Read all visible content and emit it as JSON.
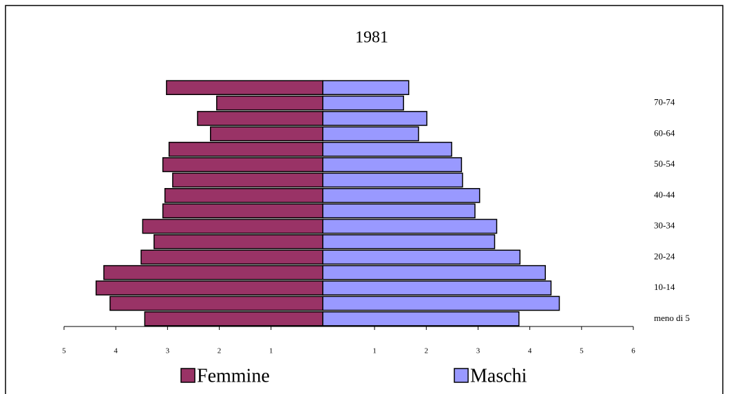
{
  "chart_data": {
    "type": "pyramid",
    "title": "1981",
    "categories": [
      "meno di 5",
      null,
      "10-14",
      null,
      "20-24",
      null,
      "30-34",
      null,
      "40-44",
      null,
      "50-54",
      null,
      "60-64",
      null,
      "70-74",
      null
    ],
    "series": [
      {
        "name": "Femmine",
        "color": "#993366",
        "values": [
          -3.44,
          -4.11,
          -4.38,
          -4.23,
          -3.51,
          -3.26,
          -3.48,
          -3.09,
          -3.05,
          -2.9,
          -3.09,
          -2.97,
          -2.17,
          -2.42,
          -2.05,
          -3.02
        ]
      },
      {
        "name": "Maschi",
        "color": "#9999ff",
        "values": [
          3.79,
          4.57,
          4.41,
          4.3,
          3.81,
          3.32,
          3.36,
          2.94,
          3.03,
          2.7,
          2.68,
          2.49,
          1.85,
          2.01,
          1.56,
          1.66
        ]
      }
    ],
    "xlim": [
      -5,
      6
    ],
    "xticks": [
      {
        "value": -5,
        "label": "5"
      },
      {
        "value": -4,
        "label": "4"
      },
      {
        "value": -3,
        "label": "3"
      },
      {
        "value": -2,
        "label": "2"
      },
      {
        "value": -1,
        "label": "1"
      },
      1,
      2,
      3,
      4,
      5,
      6
    ],
    "legend": "bottom"
  }
}
